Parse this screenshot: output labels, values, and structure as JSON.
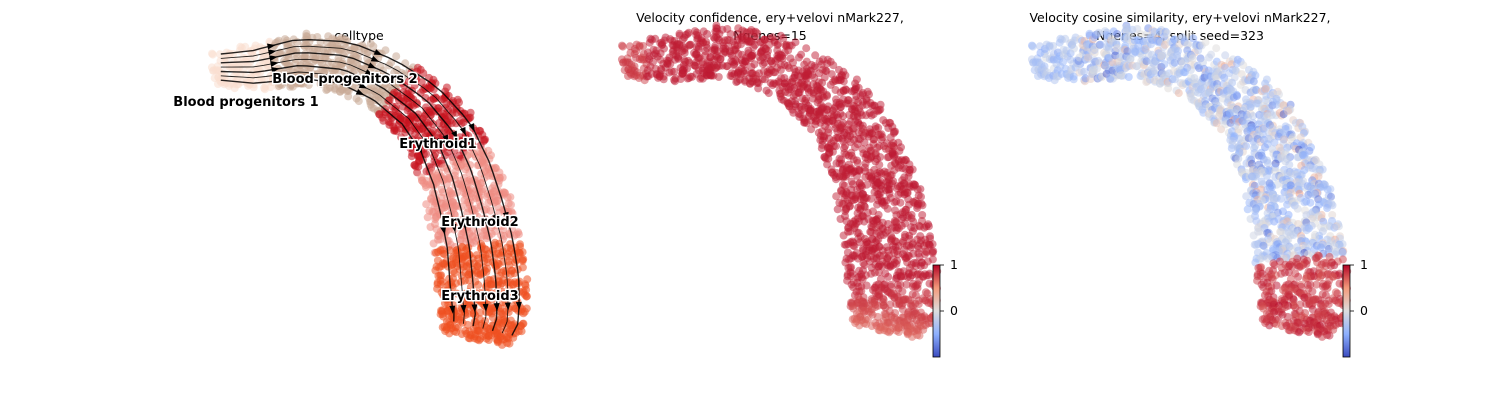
{
  "chart_data": [
    {
      "type": "scatter",
      "title": "celltype",
      "xlabel": "",
      "ylabel": "",
      "grid": false,
      "overlay": "velocity-streamlines",
      "categories": [
        "Blood progenitors 1",
        "Blood progenitors 2",
        "Erythroid1",
        "Erythroid2",
        "Erythroid3"
      ],
      "category_colors": {
        "Blood progenitors 1": "#f9decf",
        "Blood progenitors 2": "#c9a996",
        "Erythroid1": "#c7141f",
        "Erythroid2": "#ee8c84",
        "Erythroid3": "#ef5020"
      }
    },
    {
      "type": "scatter",
      "title_lines": [
        "Velocity confidence, ery+velovi nMark227,",
        "Ngenes=15"
      ],
      "xlabel": "",
      "ylabel": "",
      "grid": false,
      "colormap": "coolwarm",
      "colorbar": {
        "ticks": [
          1,
          0
        ],
        "range": [
          -1,
          1
        ]
      },
      "value_range": [
        0.7,
        0.99
      ]
    },
    {
      "type": "scatter",
      "title_lines": [
        "Velocity cosine similarity, ery+velovi nMark227,",
        "Ngenes=4, split seed=323"
      ],
      "xlabel": "",
      "ylabel": "",
      "grid": false,
      "colormap": "coolwarm",
      "colorbar": {
        "ticks": [
          1,
          0
        ],
        "range": [
          -1,
          1
        ]
      },
      "value_range": [
        -1,
        1
      ]
    }
  ]
}
